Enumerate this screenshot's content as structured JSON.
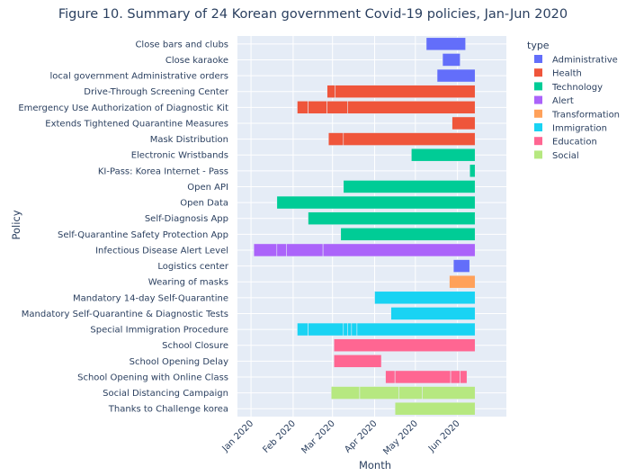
{
  "chart_data": {
    "type": "timeline",
    "title": "Figure 10. Summary of 24 Korean government Covid-19 policies, Jan-Jun 2020",
    "xlabel": "Month",
    "ylabel": "Policy",
    "x_ticks": [
      {
        "date": "2020-01-01",
        "label": "Jan 2020"
      },
      {
        "date": "2020-02-01",
        "label": "Feb 2020"
      },
      {
        "date": "2020-03-01",
        "label": "Mar 2020"
      },
      {
        "date": "2020-04-01",
        "label": "Apr 2020"
      },
      {
        "date": "2020-05-01",
        "label": "May 2020"
      },
      {
        "date": "2020-06-01",
        "label": "Jun 2020"
      }
    ],
    "x_range": [
      "2019-12-22",
      "2020-07-07"
    ],
    "legend": {
      "title": "type",
      "placement": "right",
      "items": [
        {
          "label": "Administrative",
          "color": "#636efa"
        },
        {
          "label": "Health",
          "color": "#ef553b"
        },
        {
          "label": "Technology",
          "color": "#00cc96"
        },
        {
          "label": "Alert",
          "color": "#ab63fa"
        },
        {
          "label": "Transformation",
          "color": "#ffa15a"
        },
        {
          "label": "Immigration",
          "color": "#19d3f3"
        },
        {
          "label": "Education",
          "color": "#ff6692"
        },
        {
          "label": "Social",
          "color": "#b6e880"
        }
      ]
    },
    "policies": [
      {
        "label": "Close bars and clubs",
        "type": "Administrative",
        "segments": [
          [
            "2020-05-09",
            "2020-06-07"
          ]
        ]
      },
      {
        "label": "Close karaoke",
        "type": "Administrative",
        "segments": [
          [
            "2020-05-21",
            "2020-06-03"
          ]
        ]
      },
      {
        "label": "local government Administrative orders",
        "type": "Administrative",
        "segments": [
          [
            "2020-05-17",
            "2020-06-14"
          ]
        ]
      },
      {
        "label": "Drive-Through Screening Center",
        "type": "Health",
        "segments": [
          [
            "2020-02-26",
            "2020-03-03"
          ],
          [
            "2020-03-03",
            "2020-06-14"
          ]
        ]
      },
      {
        "label": "Emergency Use Authorization of Diagnostic Kit",
        "type": "Health",
        "segments": [
          [
            "2020-02-04",
            "2020-02-12"
          ],
          [
            "2020-02-12",
            "2020-02-26"
          ],
          [
            "2020-02-26",
            "2020-03-12"
          ],
          [
            "2020-03-12",
            "2020-06-14"
          ]
        ]
      },
      {
        "label": "Extends Tightened Quarantine Measures",
        "type": "Health",
        "segments": [
          [
            "2020-05-28",
            "2020-06-14"
          ]
        ]
      },
      {
        "label": "Mask Distribution",
        "type": "Health",
        "segments": [
          [
            "2020-02-27",
            "2020-03-09"
          ],
          [
            "2020-03-09",
            "2020-06-14"
          ]
        ]
      },
      {
        "label": "Electronic Wristbands",
        "type": "Technology",
        "segments": [
          [
            "2020-04-28",
            "2020-06-14"
          ]
        ]
      },
      {
        "label": "KI-Pass: Korea Internet - Pass",
        "type": "Technology",
        "segments": [
          [
            "2020-06-10",
            "2020-06-14"
          ]
        ]
      },
      {
        "label": "Open API",
        "type": "Technology",
        "segments": [
          [
            "2020-03-09",
            "2020-06-14"
          ]
        ]
      },
      {
        "label": "Open Data",
        "type": "Technology",
        "segments": [
          [
            "2020-01-20",
            "2020-06-14"
          ]
        ]
      },
      {
        "label": "Self-Diagnosis App",
        "type": "Technology",
        "segments": [
          [
            "2020-02-12",
            "2020-06-14"
          ]
        ]
      },
      {
        "label": "Self-Quarantine Safety Protection App",
        "type": "Technology",
        "segments": [
          [
            "2020-03-07",
            "2020-06-14"
          ]
        ]
      },
      {
        "label": "Infectious Disease Alert Level",
        "type": "Alert",
        "segments": [
          [
            "2020-01-03",
            "2020-01-20"
          ],
          [
            "2020-01-20",
            "2020-01-27"
          ],
          [
            "2020-01-27",
            "2020-02-23"
          ],
          [
            "2020-02-23",
            "2020-06-14"
          ]
        ]
      },
      {
        "label": "Logistics center",
        "type": "Administrative",
        "segments": [
          [
            "2020-05-29",
            "2020-06-10"
          ]
        ]
      },
      {
        "label": "Wearing of masks",
        "type": "Transformation",
        "segments": [
          [
            "2020-05-26",
            "2020-06-14"
          ]
        ]
      },
      {
        "label": "Mandatory 14-day Self-Quarantine",
        "type": "Immigration",
        "segments": [
          [
            "2020-04-01",
            "2020-06-14"
          ]
        ]
      },
      {
        "label": "Mandatory Self-Quarantine & Diagnostic Tests",
        "type": "Immigration",
        "segments": [
          [
            "2020-04-13",
            "2020-06-14"
          ]
        ]
      },
      {
        "label": "Special Immigration Procedure",
        "type": "Immigration",
        "segments": [
          [
            "2020-02-04",
            "2020-02-12"
          ],
          [
            "2020-02-12",
            "2020-03-09"
          ],
          [
            "2020-03-09",
            "2020-03-12"
          ],
          [
            "2020-03-12",
            "2020-03-15"
          ],
          [
            "2020-03-15",
            "2020-03-19"
          ],
          [
            "2020-03-19",
            "2020-06-14"
          ]
        ]
      },
      {
        "label": "School Closure",
        "type": "Education",
        "segments": [
          [
            "2020-03-02",
            "2020-06-14"
          ]
        ]
      },
      {
        "label": "School Opening Delay",
        "type": "Education",
        "segments": [
          [
            "2020-03-02",
            "2020-04-06"
          ]
        ]
      },
      {
        "label": "School Opening with Online Class",
        "type": "Education",
        "segments": [
          [
            "2020-04-09",
            "2020-04-16"
          ],
          [
            "2020-04-16",
            "2020-05-27"
          ],
          [
            "2020-05-27",
            "2020-06-03"
          ],
          [
            "2020-06-03",
            "2020-06-08"
          ]
        ]
      },
      {
        "label": "Social Distancing Campaign",
        "type": "Social",
        "segments": [
          [
            "2020-02-29",
            "2020-03-21"
          ],
          [
            "2020-03-21",
            "2020-04-19"
          ],
          [
            "2020-04-19",
            "2020-05-06"
          ],
          [
            "2020-05-06",
            "2020-06-14"
          ]
        ]
      },
      {
        "label": "Thanks to Challenge korea",
        "type": "Social",
        "segments": [
          [
            "2020-04-16",
            "2020-06-14"
          ]
        ]
      }
    ]
  }
}
